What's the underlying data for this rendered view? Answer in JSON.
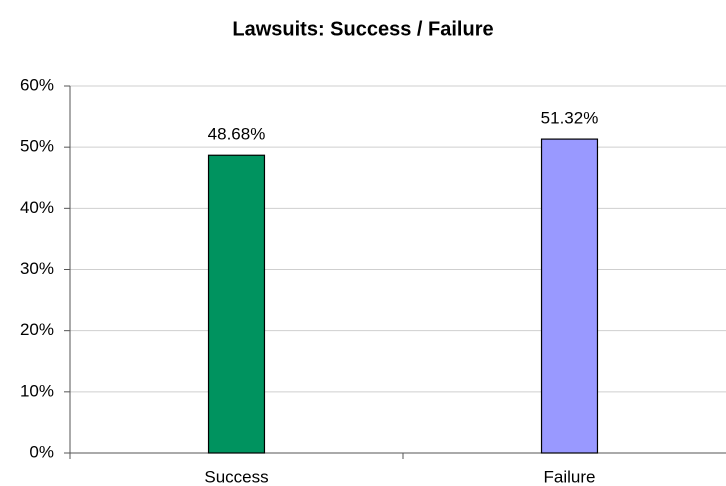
{
  "chart_data": {
    "type": "bar",
    "title": "Lawsuits: Success / Failure",
    "categories": [
      "Success",
      "Failure"
    ],
    "values": [
      48.68,
      51.32
    ],
    "value_labels": [
      "48.68%",
      "51.32%"
    ],
    "colors": [
      "#00935f",
      "#9999ff"
    ],
    "ylim": [
      0,
      60
    ],
    "yticks": [
      {
        "value": 0,
        "label": "0%"
      },
      {
        "value": 10,
        "label": "10%"
      },
      {
        "value": 20,
        "label": "20%"
      },
      {
        "value": 30,
        "label": "30%"
      },
      {
        "value": 40,
        "label": "40%"
      },
      {
        "value": 50,
        "label": "50%"
      },
      {
        "value": 60,
        "label": "60%"
      }
    ],
    "grid": true
  }
}
